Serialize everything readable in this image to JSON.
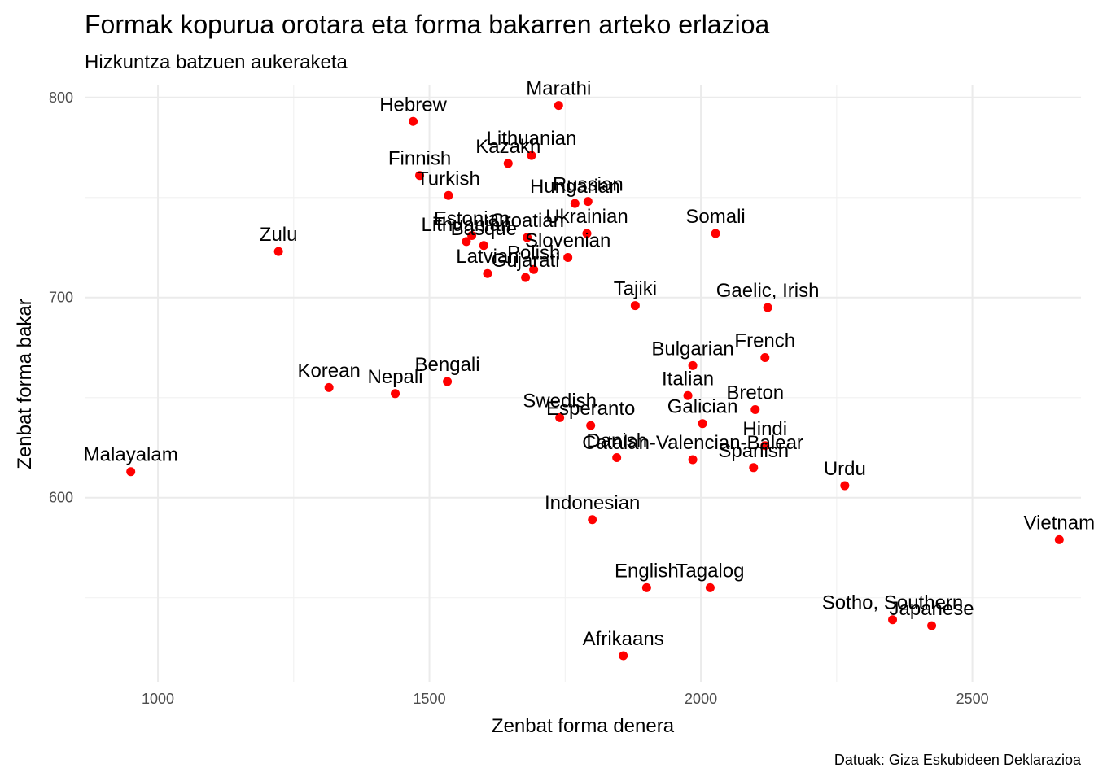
{
  "chart_data": {
    "type": "scatter",
    "title": "Formak kopurua orotara eta forma bakarren arteko erlazioa",
    "subtitle": "Hizkuntza batzuen aukeraketa",
    "xlabel": "Zenbat forma denera",
    "ylabel": "Zenbat forma bakar",
    "caption": "Datuak: Giza Eskubideen Deklarazioa",
    "xlim": [
      865,
      2700
    ],
    "ylim": [
      508,
      806
    ],
    "x_ticks": [
      1000,
      1500,
      2000,
      2500
    ],
    "y_ticks": [
      600,
      700,
      800
    ],
    "grid": true,
    "point_color": "#ff0000",
    "points": [
      {
        "label": "Marathi",
        "x": 1738,
        "y": 796
      },
      {
        "label": "Hebrew",
        "x": 1470,
        "y": 788
      },
      {
        "label": "Lithuanian",
        "x": 1688,
        "y": 771
      },
      {
        "label": "Kazakh",
        "x": 1645,
        "y": 767
      },
      {
        "label": "Finnish",
        "x": 1482,
        "y": 761
      },
      {
        "label": "Turkish",
        "x": 1535,
        "y": 751
      },
      {
        "label": "Russian",
        "x": 1792,
        "y": 748
      },
      {
        "label": "Hungarian",
        "x": 1768,
        "y": 747
      },
      {
        "label": "Ukrainian",
        "x": 1790,
        "y": 732
      },
      {
        "label": "Somali",
        "x": 2027,
        "y": 732
      },
      {
        "label": "Estonian",
        "x": 1578,
        "y": 731
      },
      {
        "label": "Croatian",
        "x": 1680,
        "y": 730
      },
      {
        "label": "Lithuanian",
        "x": 1568,
        "y": 728
      },
      {
        "label": "Basque",
        "x": 1600,
        "y": 726
      },
      {
        "label": "Slovenian",
        "x": 1755,
        "y": 720
      },
      {
        "label": "Polish",
        "x": 1692,
        "y": 714
      },
      {
        "label": "Latvian",
        "x": 1607,
        "y": 712
      },
      {
        "label": "Gujarati",
        "x": 1677,
        "y": 710
      },
      {
        "label": "Zulu",
        "x": 1222,
        "y": 723
      },
      {
        "label": "Tajiki",
        "x": 1879,
        "y": 696
      },
      {
        "label": "Gaelic, Irish",
        "x": 2123,
        "y": 695
      },
      {
        "label": "French",
        "x": 2118,
        "y": 670
      },
      {
        "label": "Bulgarian",
        "x": 1985,
        "y": 666
      },
      {
        "label": "Bengali",
        "x": 1533,
        "y": 658
      },
      {
        "label": "Korean",
        "x": 1315,
        "y": 655
      },
      {
        "label": "Nepali",
        "x": 1437,
        "y": 652
      },
      {
        "label": "Italian",
        "x": 1976,
        "y": 651
      },
      {
        "label": "Breton",
        "x": 2100,
        "y": 644
      },
      {
        "label": "Swedish",
        "x": 1740,
        "y": 640
      },
      {
        "label": "Galician",
        "x": 2003,
        "y": 637
      },
      {
        "label": "Esperanto",
        "x": 1797,
        "y": 636
      },
      {
        "label": "Hindi",
        "x": 2118,
        "y": 626
      },
      {
        "label": "Danish",
        "x": 1845,
        "y": 620
      },
      {
        "label": "Catalan-Valencian-Balear",
        "x": 1985,
        "y": 619
      },
      {
        "label": "Spanish",
        "x": 2097,
        "y": 615
      },
      {
        "label": "Malayalam",
        "x": 950,
        "y": 613
      },
      {
        "label": "Urdu",
        "x": 2265,
        "y": 606
      },
      {
        "label": "Indonesian",
        "x": 1800,
        "y": 589
      },
      {
        "label": "Vietnam",
        "x": 2660,
        "y": 579
      },
      {
        "label": "English",
        "x": 1900,
        "y": 555
      },
      {
        "label": "Tagalog",
        "x": 2017,
        "y": 555
      },
      {
        "label": "Sotho, Southern",
        "x": 2353,
        "y": 539
      },
      {
        "label": "Japanese",
        "x": 2425,
        "y": 536
      },
      {
        "label": "Afrikaans",
        "x": 1857,
        "y": 521
      }
    ]
  }
}
